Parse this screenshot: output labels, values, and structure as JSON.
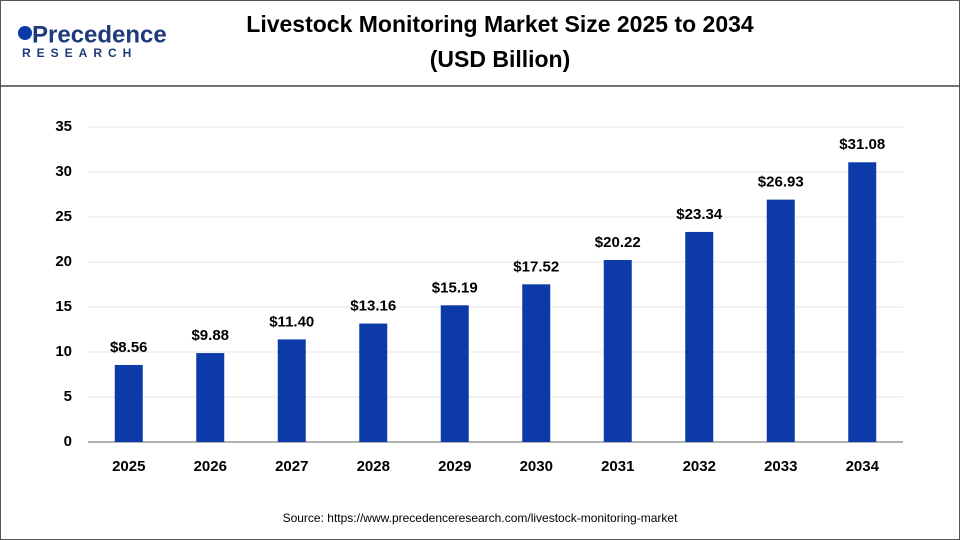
{
  "logo": {
    "name": "Precedence",
    "tagline": "RESEARCH"
  },
  "chart_data": {
    "type": "bar",
    "title": "Livestock Monitoring Market Size 2025 to 2034",
    "subtitle": "(USD Billion)",
    "categories": [
      "2025",
      "2026",
      "2027",
      "2028",
      "2029",
      "2030",
      "2031",
      "2032",
      "2033",
      "2034"
    ],
    "values": [
      8.56,
      9.88,
      11.4,
      13.16,
      15.19,
      17.52,
      20.22,
      23.34,
      26.93,
      31.08
    ],
    "value_labels": [
      "$8.56",
      "$9.88",
      "$11.40",
      "$13.16",
      "$15.19",
      "$17.52",
      "$20.22",
      "$23.34",
      "$26.93",
      "$31.08"
    ],
    "color": "#0d3aa9",
    "ylim": [
      0,
      35
    ],
    "yticks": [
      0,
      5,
      10,
      15,
      20,
      25,
      30,
      35
    ],
    "grid": true,
    "source": "Source: https://www.precedenceresearch.com/livestock-monitoring-market"
  }
}
